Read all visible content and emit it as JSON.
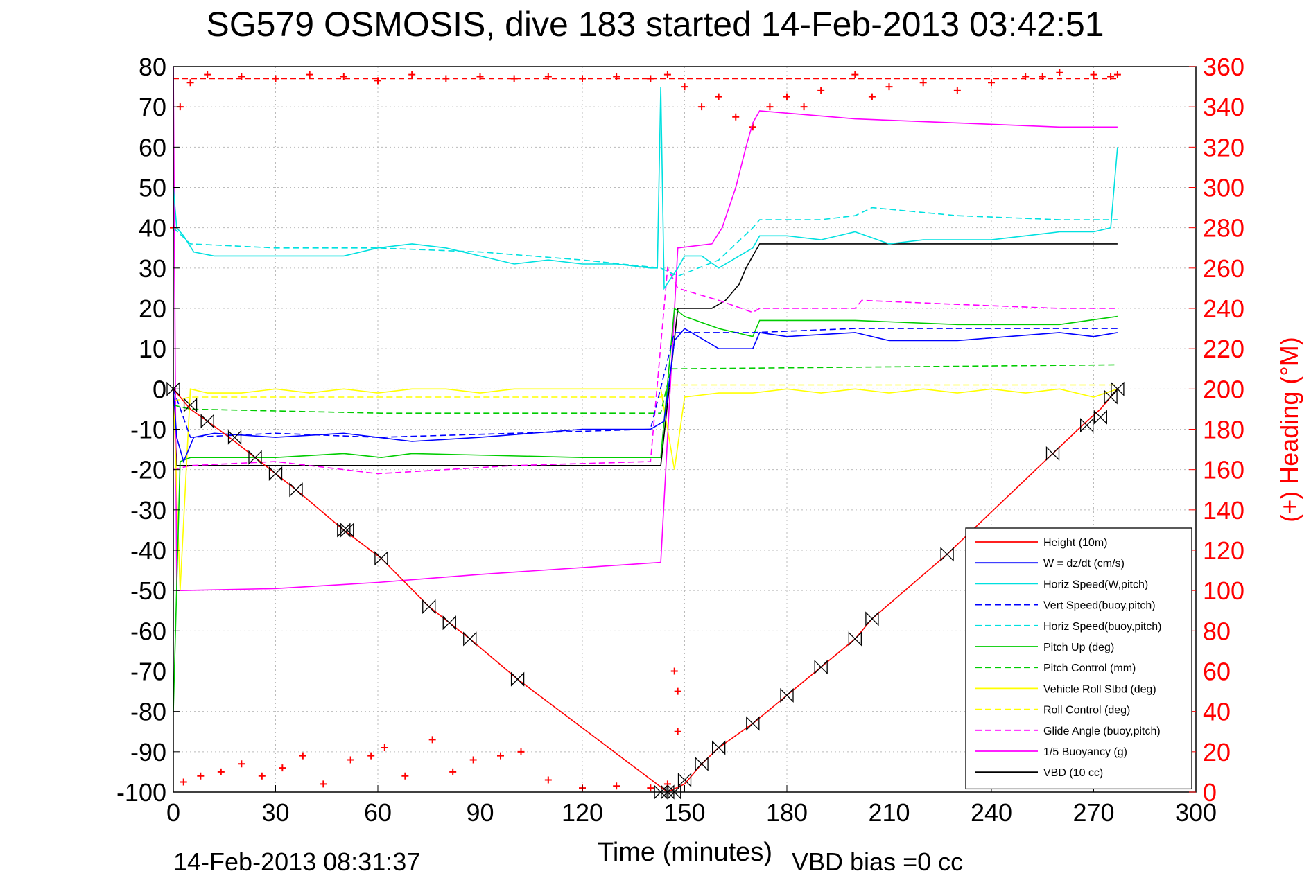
{
  "chart_data": {
    "type": "line",
    "title": "SG579 OSMOSIS, dive 183 started 14-Feb-2013 03:42:51",
    "xlabel": "Time (minutes)",
    "ylabel": "",
    "y2label": "(+) Heading (°M)",
    "footer_left": "14-Feb-2013 08:31:37",
    "footer_right": "VBD bias =0 cc",
    "xlim": [
      0,
      300
    ],
    "ylim": [
      -100,
      80
    ],
    "y2lim": [
      0,
      360
    ],
    "xticks": [
      0,
      30,
      60,
      90,
      120,
      150,
      180,
      210,
      240,
      270,
      300
    ],
    "yticks": [
      -100,
      -90,
      -80,
      -70,
      -60,
      -50,
      -40,
      -30,
      -20,
      -10,
      0,
      10,
      20,
      30,
      40,
      50,
      60,
      70,
      80
    ],
    "y2ticks": [
      0,
      20,
      40,
      60,
      80,
      100,
      120,
      140,
      160,
      180,
      200,
      220,
      240,
      260,
      280,
      300,
      320,
      340,
      360
    ],
    "grid": true,
    "legend_position": "bottom-right",
    "legend": [
      {
        "label": "Height (10m)",
        "color": "#ff0000",
        "dash": false
      },
      {
        "label": "W = dz/dt (cm/s)",
        "color": "#0000ff",
        "dash": false
      },
      {
        "label": "Horiz Speed(W,pitch)",
        "color": "#00e0e0",
        "dash": false
      },
      {
        "label": "Vert Speed(buoy,pitch)",
        "color": "#0000ff",
        "dash": true
      },
      {
        "label": "Horiz Speed(buoy,pitch)",
        "color": "#00e0e0",
        "dash": true
      },
      {
        "label": "Pitch Up (deg)",
        "color": "#00cc00",
        "dash": false
      },
      {
        "label": "Pitch Control (mm)",
        "color": "#00cc00",
        "dash": true
      },
      {
        "label": "Vehicle Roll Stbd (deg)",
        "color": "#ffff00",
        "dash": false
      },
      {
        "label": "Roll Control (deg)",
        "color": "#ffff00",
        "dash": true
      },
      {
        "label": "Glide Angle (buoy,pitch)",
        "color": "#ff00ff",
        "dash": true
      },
      {
        "label": "1/5 Buoyancy (g)",
        "color": "#ff00ff",
        "dash": false
      },
      {
        "label": "VBD (10 cc)",
        "color": "#000000",
        "dash": false
      }
    ],
    "series": [
      {
        "name": "Height (10m)",
        "color": "#ff0000",
        "dash": false,
        "x": [
          0,
          5,
          10,
          18,
          24,
          30,
          36,
          50,
          61,
          75,
          81,
          87,
          101,
          145,
          150,
          155,
          160,
          170,
          180,
          190,
          200,
          205,
          227,
          258,
          268,
          272,
          277
        ],
        "y": [
          0,
          -5,
          -8,
          -13,
          -17,
          -21,
          -25,
          -35,
          -42,
          -54,
          -58,
          -62,
          -72,
          -100,
          -98,
          -93,
          -89,
          -83,
          -76,
          -69,
          -62,
          -57,
          -41,
          -16,
          -8,
          -5,
          0
        ]
      },
      {
        "name": "W = dz/dt (cm/s)",
        "color": "#0000ff",
        "dash": false,
        "x": [
          0,
          1,
          3,
          6,
          12,
          30,
          50,
          70,
          90,
          120,
          140,
          144,
          147,
          150,
          160,
          170,
          172,
          180,
          200,
          210,
          230,
          260,
          270,
          277
        ],
        "y": [
          0,
          -12,
          -18,
          -12,
          -11,
          -12,
          -11,
          -13,
          -12,
          -10,
          -10,
          -8,
          12,
          15,
          10,
          10,
          14,
          13,
          14,
          12,
          12,
          14,
          13,
          14
        ]
      },
      {
        "name": "Horiz Speed(W,pitch)",
        "color": "#00e0e0",
        "dash": false,
        "x": [
          0,
          1,
          3,
          6,
          12,
          30,
          50,
          60,
          70,
          80,
          90,
          100,
          110,
          120,
          130,
          140,
          142,
          143,
          144,
          148,
          150,
          155,
          160,
          170,
          172,
          180,
          190,
          200,
          210,
          220,
          230,
          240,
          250,
          260,
          270,
          275,
          277
        ],
        "y": [
          50,
          40,
          38,
          34,
          33,
          33,
          33,
          35,
          36,
          35,
          33,
          31,
          32,
          31,
          31,
          30,
          30,
          75,
          25,
          30,
          33,
          33,
          30,
          35,
          38,
          38,
          37,
          39,
          36,
          37,
          37,
          37,
          38,
          39,
          39,
          40,
          60
        ]
      },
      {
        "name": "Vert Speed(buoy,pitch)",
        "color": "#0000ff",
        "dash": true,
        "x": [
          0,
          5,
          30,
          60,
          100,
          140,
          147,
          170,
          200,
          277
        ],
        "y": [
          0,
          -12,
          -11,
          -12,
          -11,
          -10,
          14,
          14,
          15,
          15
        ]
      },
      {
        "name": "Horiz Speed(buoy,pitch)",
        "color": "#00e0e0",
        "dash": true,
        "x": [
          0,
          5,
          30,
          60,
          90,
          120,
          143,
          148,
          160,
          170,
          172,
          190,
          200,
          205,
          230,
          260,
          277
        ],
        "y": [
          40,
          36,
          35,
          35,
          34,
          32,
          30,
          28,
          32,
          40,
          42,
          42,
          43,
          45,
          43,
          42,
          42
        ]
      },
      {
        "name": "Pitch Up (deg)",
        "color": "#00cc00",
        "dash": false,
        "x": [
          0,
          2,
          5,
          10,
          30,
          50,
          61,
          70,
          120,
          143,
          147,
          150,
          160,
          170,
          172,
          200,
          230,
          260,
          277
        ],
        "y": [
          -80,
          -18,
          -17,
          -17,
          -17,
          -16,
          -17,
          -16,
          -17,
          -17,
          20,
          18,
          15,
          13,
          17,
          17,
          16,
          16,
          18
        ]
      },
      {
        "name": "Pitch Control (mm)",
        "color": "#00cc00",
        "dash": true,
        "x": [
          0,
          5,
          61,
          143,
          146,
          277
        ],
        "y": [
          -4,
          -5,
          -6,
          -6,
          5,
          6
        ]
      },
      {
        "name": "Vehicle Roll Stbd (deg)",
        "color": "#ffff00",
        "dash": false,
        "x": [
          0,
          2,
          5,
          10,
          20,
          30,
          40,
          50,
          60,
          70,
          80,
          90,
          100,
          110,
          120,
          130,
          140,
          143,
          147,
          150,
          160,
          170,
          180,
          190,
          200,
          210,
          220,
          230,
          240,
          250,
          260,
          270,
          277
        ],
        "y": [
          0,
          -50,
          0,
          -1,
          -1,
          0,
          -1,
          0,
          -1,
          0,
          0,
          -1,
          0,
          0,
          0,
          0,
          0,
          0,
          -20,
          -2,
          -1,
          -1,
          0,
          -1,
          0,
          -1,
          0,
          -1,
          0,
          -1,
          0,
          -2,
          0
        ]
      },
      {
        "name": "Roll Control (deg)",
        "color": "#ffff00",
        "dash": true,
        "x": [
          0,
          5,
          143,
          146,
          277
        ],
        "y": [
          -3,
          -2,
          -2,
          1,
          1
        ]
      },
      {
        "name": "Glide Angle (buoy,pitch)",
        "color": "#ff00ff",
        "dash": true,
        "x": [
          0,
          5,
          30,
          60,
          100,
          140,
          145,
          148,
          160,
          170,
          172,
          200,
          202,
          230,
          260,
          277
        ],
        "y": [
          -20,
          -19,
          -18,
          -21,
          -19,
          -18,
          30,
          25,
          22,
          19,
          20,
          20,
          22,
          21,
          20,
          20
        ]
      },
      {
        "name": "1/5 Buoyancy (g)",
        "color": "#ff00ff",
        "dash": false,
        "x": [
          0,
          1,
          2,
          30,
          60,
          90,
          143,
          148,
          158,
          161,
          165,
          168,
          170,
          172,
          200,
          230,
          260,
          277
        ],
        "y": [
          80,
          -50,
          -50,
          -49.5,
          -48,
          -46,
          -43,
          35,
          36,
          40,
          50,
          60,
          66,
          69,
          67,
          66,
          65,
          65
        ]
      },
      {
        "name": "VBD (10 cc)",
        "color": "#000000",
        "dash": false,
        "x": [
          0,
          1,
          2,
          30,
          60,
          100,
          143,
          148,
          158,
          162,
          166,
          168,
          170,
          172,
          200,
          230,
          260,
          277
        ],
        "y": [
          0,
          -19,
          -19,
          -19,
          -19,
          -19,
          -19,
          20,
          20,
          22,
          26,
          30,
          33,
          36,
          36,
          36,
          36,
          36
        ]
      }
    ],
    "heading": {
      "name": "Heading",
      "color": "#ff0000",
      "marker": "+",
      "axis": "right",
      "x": [
        0,
        2,
        5,
        10,
        20,
        30,
        40,
        50,
        60,
        70,
        80,
        90,
        100,
        110,
        120,
        130,
        140,
        145,
        147,
        148,
        150,
        155,
        160,
        165,
        170,
        175,
        180,
        185,
        190,
        200,
        205,
        210,
        220,
        230,
        240,
        250,
        255,
        260,
        270,
        275,
        277
      ],
      "y": [
        280,
        340,
        352,
        356,
        355,
        354,
        356,
        355,
        353,
        356,
        354,
        355,
        354,
        355,
        354,
        355,
        354,
        356,
        60,
        30,
        350,
        340,
        345,
        335,
        330,
        340,
        345,
        340,
        348,
        356,
        345,
        350,
        352,
        348,
        352,
        355,
        355,
        357,
        356,
        355,
        356
      ]
    },
    "heading_low": {
      "name": "Heading",
      "color": "#ff0000",
      "marker": "+",
      "axis": "right",
      "x": [
        3,
        8,
        14,
        20,
        26,
        32,
        38,
        44,
        52,
        58,
        62,
        68,
        76,
        82,
        88,
        96,
        102,
        110,
        120,
        130,
        140,
        145,
        148
      ],
      "y": [
        5,
        8,
        10,
        14,
        8,
        12,
        18,
        4,
        16,
        18,
        22,
        8,
        26,
        10,
        16,
        18,
        20,
        6,
        2,
        3,
        2,
        4,
        50
      ]
    },
    "heading_ref": {
      "name": "Heading ref",
      "color": "#ff0000",
      "dash": true,
      "axis": "right",
      "x": [
        0,
        277
      ],
      "y": [
        354,
        354
      ]
    },
    "markers": {
      "name": "Measurement markers",
      "symbol": "bowtie",
      "x": [
        0,
        5,
        10,
        18,
        24,
        30,
        36,
        50,
        51,
        61,
        75,
        81,
        87,
        101,
        143,
        145,
        147,
        150,
        155,
        160,
        170,
        180,
        190,
        200,
        205,
        227,
        258,
        268,
        272,
        275,
        277
      ],
      "y": [
        0,
        -4,
        -8,
        -12,
        -17,
        -21,
        -25,
        -35,
        -35,
        -42,
        -54,
        -58,
        -62,
        -72,
        -100,
        -100,
        -100,
        -97,
        -93,
        -89,
        -83,
        -76,
        -69,
        -62,
        -57,
        -41,
        -16,
        -9,
        -7,
        -2,
        0
      ]
    }
  }
}
